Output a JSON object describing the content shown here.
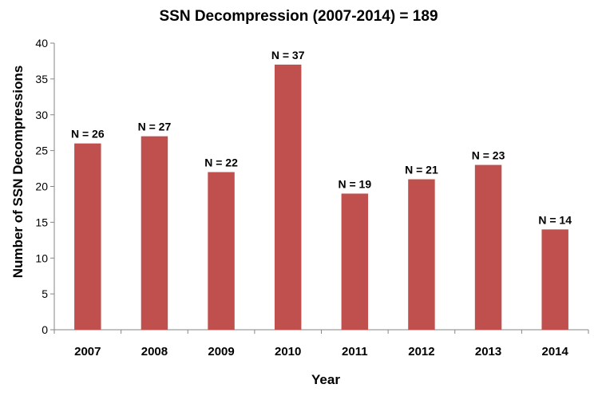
{
  "chart_data": {
    "type": "bar",
    "title": "SSN Decompression (2007-2014) = 189",
    "xlabel": "Year",
    "ylabel": "Number of SSN Decompressions",
    "categories": [
      "2007",
      "2008",
      "2009",
      "2010",
      "2011",
      "2012",
      "2013",
      "2014"
    ],
    "values": [
      26,
      27,
      22,
      37,
      19,
      21,
      23,
      14
    ],
    "data_labels": [
      "N = 26",
      "N = 27",
      "N = 22",
      "N = 37",
      "N = 19",
      "N = 21",
      "N = 23",
      "N = 14"
    ],
    "ylim": [
      0,
      40
    ],
    "yticks": [
      "0",
      "5",
      "10",
      "15",
      "20",
      "25",
      "30",
      "35",
      "40"
    ],
    "bar_color": "#c0504d",
    "grid": false,
    "legend": "none"
  }
}
